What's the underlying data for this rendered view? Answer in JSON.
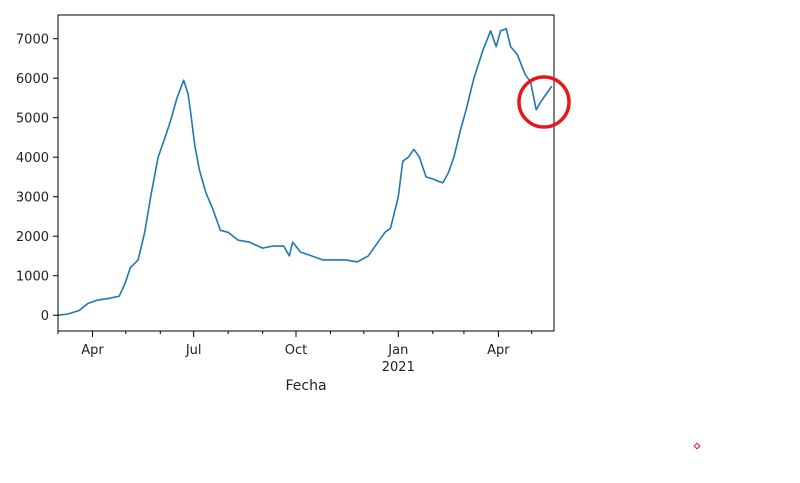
{
  "chart_data": {
    "type": "line",
    "title": "",
    "xlabel": "Fecha",
    "ylabel": "",
    "grid": false,
    "legend": "none",
    "ylim": [
      -400,
      7600
    ],
    "xlim": [
      "2020-03-01",
      "2021-05-21"
    ],
    "line_color": "#1f77b4",
    "yticks": [
      0,
      1000,
      2000,
      3000,
      4000,
      5000,
      6000,
      7000
    ],
    "yticklabels": [
      "0",
      "1000",
      "2000",
      "3000",
      "4000",
      "5000",
      "6000",
      "7000"
    ],
    "xticks": [
      {
        "date": "2020-04-01",
        "label": "Apr",
        "sublabel": ""
      },
      {
        "date": "2020-07-01",
        "label": "Jul",
        "sublabel": ""
      },
      {
        "date": "2020-10-01",
        "label": "Oct",
        "sublabel": ""
      },
      {
        "date": "2021-01-01",
        "label": "Jan",
        "sublabel": "2021"
      },
      {
        "date": "2021-04-01",
        "label": "Apr",
        "sublabel": ""
      }
    ],
    "minor_xticks": [
      "2020-03-01",
      "2020-05-01",
      "2020-06-01",
      "2020-08-01",
      "2020-09-01",
      "2020-11-01",
      "2020-12-01",
      "2021-02-01",
      "2021-03-01",
      "2021-05-01"
    ],
    "series": [
      {
        "x": [
          "2020-03-01",
          "2020-03-10",
          "2020-03-20",
          "2020-03-28",
          "2020-04-05",
          "2020-04-15",
          "2020-04-25",
          "2020-04-30",
          "2020-05-05",
          "2020-05-12",
          "2020-05-18",
          "2020-05-24",
          "2020-05-30",
          "2020-06-04",
          "2020-06-10",
          "2020-06-16",
          "2020-06-22",
          "2020-06-26",
          "2020-06-28",
          "2020-07-02",
          "2020-07-06",
          "2020-07-12",
          "2020-07-18",
          "2020-07-25",
          "2020-08-01",
          "2020-08-10",
          "2020-08-20",
          "2020-09-01",
          "2020-09-10",
          "2020-09-20",
          "2020-09-25",
          "2020-09-28",
          "2020-10-05",
          "2020-10-15",
          "2020-10-25",
          "2020-11-05",
          "2020-11-15",
          "2020-11-25",
          "2020-12-05",
          "2020-12-15",
          "2020-12-20",
          "2020-12-25",
          "2021-01-01",
          "2021-01-05",
          "2021-01-10",
          "2021-01-15",
          "2021-01-20",
          "2021-01-26",
          "2021-02-01",
          "2021-02-05",
          "2021-02-10",
          "2021-02-15",
          "2021-02-20",
          "2021-02-26",
          "2021-03-03",
          "2021-03-10",
          "2021-03-18",
          "2021-03-25",
          "2021-03-30",
          "2021-04-03",
          "2021-04-08",
          "2021-04-12",
          "2021-04-18",
          "2021-04-25",
          "2021-04-30",
          "2021-05-05",
          "2021-05-09",
          "2021-05-14",
          "2021-05-19"
        ],
        "y": [
          0,
          30,
          120,
          300,
          380,
          420,
          480,
          780,
          1200,
          1400,
          2100,
          3100,
          4000,
          4400,
          4900,
          5500,
          5950,
          5600,
          5200,
          4300,
          3700,
          3100,
          2700,
          2150,
          2100,
          1900,
          1850,
          1700,
          1750,
          1750,
          1500,
          1850,
          1600,
          1500,
          1400,
          1400,
          1400,
          1350,
          1500,
          1900,
          2100,
          2200,
          3000,
          3900,
          4000,
          4200,
          4000,
          3500,
          3450,
          3400,
          3350,
          3600,
          4000,
          4700,
          5200,
          6000,
          6700,
          7200,
          6800,
          7200,
          7250,
          6800,
          6600,
          6100,
          5900,
          5200,
          5400,
          5600,
          5800
        ]
      }
    ]
  },
  "annotations": {
    "highlight_circle_color": "#e8161b",
    "small_marker_color": "#e8161b"
  }
}
